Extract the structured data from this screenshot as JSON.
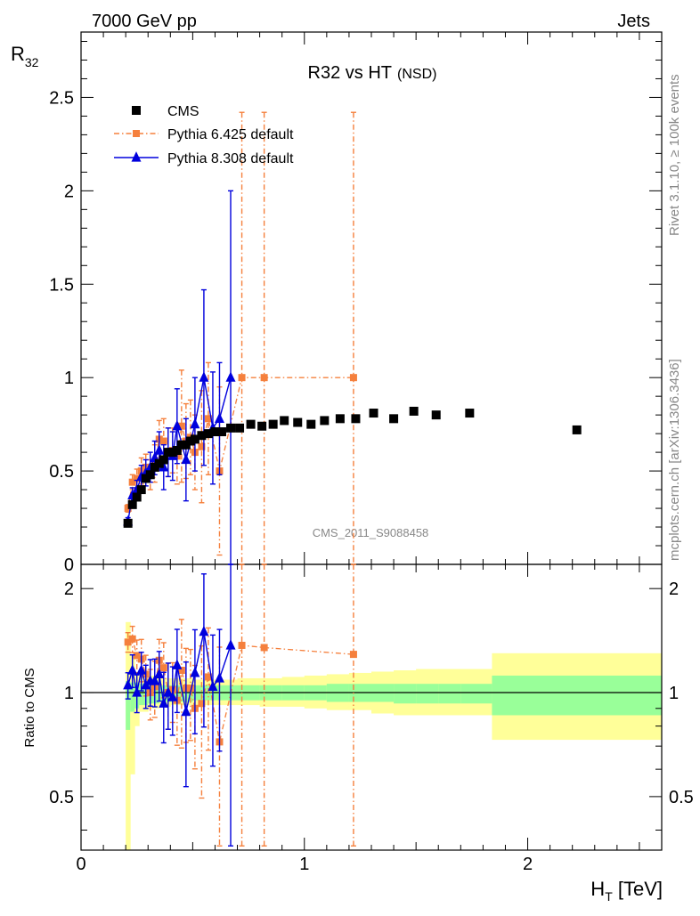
{
  "colors": {
    "cms": "#000000",
    "pythia6": "#f5803d",
    "pythia8": "#0000dd",
    "band_inner": "#99ff99",
    "band_outer": "#ffff99",
    "watermark": "#888888"
  },
  "header": {
    "left": "7000 GeV pp",
    "right": "Jets"
  },
  "side_text": {
    "rivet": "Rivet 3.1.10, ≥ 100k events",
    "mcplots": "mcplots.cern.ch [arXiv:1306.3436]"
  },
  "chart_data": {
    "type": "scatter",
    "title": "R32 vs HT",
    "title_suffix": "(NSD)",
    "analysis_label": "CMS_2011_S9088458",
    "xlabel_main": "H",
    "xlabel_sub": "T",
    "xlabel_unit": " [TeV]",
    "ylabel_main": "R",
    "ylabel_sub": "32",
    "ratio_ylabel": "Ratio to CMS",
    "xlim": [
      0,
      2.6
    ],
    "ylim": [
      0,
      2.85
    ],
    "ratio_ylim": [
      0.35,
      2.35
    ],
    "x_ticks": [
      {
        "v": 0,
        "label": "0"
      },
      {
        "v": 1,
        "label": "1"
      },
      {
        "v": 2,
        "label": "2"
      }
    ],
    "y_ticks": [
      {
        "v": 0,
        "label": "0"
      },
      {
        "v": 0.5,
        "label": "0.5"
      },
      {
        "v": 1,
        "label": "1"
      },
      {
        "v": 1.5,
        "label": "1.5"
      },
      {
        "v": 2,
        "label": "2"
      },
      {
        "v": 2.5,
        "label": "2.5"
      }
    ],
    "ratio_ticks": [
      {
        "v": 0.5,
        "label": "0.5"
      },
      {
        "v": 1,
        "label": "1"
      },
      {
        "v": 2,
        "label": "2"
      }
    ],
    "legend": [
      {
        "key": "cms",
        "label": "CMS"
      },
      {
        "key": "pythia6",
        "label": "Pythia 6.425 default"
      },
      {
        "key": "pythia8",
        "label": "Pythia 8.308 default"
      }
    ],
    "series": [
      {
        "name": "CMS",
        "key": "cms",
        "x": [
          0.21,
          0.23,
          0.25,
          0.27,
          0.29,
          0.31,
          0.33,
          0.35,
          0.37,
          0.39,
          0.41,
          0.43,
          0.45,
          0.47,
          0.49,
          0.51,
          0.54,
          0.57,
          0.6,
          0.63,
          0.67,
          0.71,
          0.76,
          0.81,
          0.86,
          0.91,
          0.97,
          1.03,
          1.09,
          1.16,
          1.23,
          1.31,
          1.4,
          1.49,
          1.59,
          1.74,
          2.22
        ],
        "y": [
          0.22,
          0.32,
          0.36,
          0.4,
          0.46,
          0.48,
          0.52,
          0.54,
          0.56,
          0.6,
          0.6,
          0.61,
          0.64,
          0.64,
          0.66,
          0.67,
          0.69,
          0.7,
          0.71,
          0.71,
          0.73,
          0.73,
          0.75,
          0.74,
          0.75,
          0.77,
          0.76,
          0.75,
          0.77,
          0.78,
          0.78,
          0.81,
          0.78,
          0.82,
          0.8,
          0.81,
          0.72
        ]
      },
      {
        "name": "Pythia 6.425 default",
        "key": "pythia6",
        "x": [
          0.21,
          0.23,
          0.25,
          0.27,
          0.29,
          0.31,
          0.33,
          0.35,
          0.37,
          0.39,
          0.41,
          0.43,
          0.45,
          0.47,
          0.49,
          0.51,
          0.54,
          0.57,
          0.62,
          0.72,
          0.82,
          1.22
        ],
        "y": [
          0.3,
          0.44,
          0.46,
          0.5,
          0.52,
          0.48,
          0.54,
          0.67,
          0.66,
          0.6,
          0.61,
          0.58,
          0.74,
          0.66,
          0.68,
          0.6,
          0.63,
          0.78,
          0.5,
          1.0,
          1.0,
          1.0
        ],
        "err": [
          0.02,
          0.04,
          0.05,
          0.07,
          0.07,
          0.08,
          0.1,
          0.1,
          0.12,
          0.13,
          0.12,
          0.15,
          0.3,
          0.2,
          0.2,
          0.2,
          0.3,
          0.3,
          0.45,
          1.42,
          1.42,
          1.42
        ],
        "ratio": [
          1.4,
          1.43,
          1.28,
          1.25,
          1.13,
          1.0,
          1.04,
          1.24,
          1.18,
          1.0,
          1.02,
          0.95,
          1.16,
          1.03,
          1.03,
          0.9,
          0.93,
          1.11,
          0.72,
          1.37,
          1.35,
          1.29
        ]
      },
      {
        "name": "Pythia 8.308 default",
        "key": "pythia8",
        "x": [
          0.21,
          0.23,
          0.25,
          0.27,
          0.29,
          0.31,
          0.33,
          0.35,
          0.37,
          0.39,
          0.41,
          0.43,
          0.47,
          0.51,
          0.55,
          0.59,
          0.62,
          0.67
        ],
        "y": [
          0.23,
          0.37,
          0.4,
          0.47,
          0.49,
          0.52,
          0.57,
          0.61,
          0.52,
          0.6,
          0.58,
          0.74,
          0.56,
          0.75,
          1.0,
          0.73,
          0.78,
          1.0
        ],
        "err": [
          0.02,
          0.04,
          0.05,
          0.06,
          0.07,
          0.08,
          0.09,
          0.1,
          0.12,
          0.13,
          0.13,
          0.2,
          0.22,
          0.25,
          0.47,
          0.3,
          0.3,
          1.0
        ],
        "ratio": [
          1.05,
          1.16,
          1.0,
          1.16,
          1.05,
          1.08,
          1.08,
          1.13,
          0.93,
          1.0,
          0.97,
          1.2,
          0.88,
          1.14,
          1.5,
          1.04,
          1.1,
          1.37
        ]
      }
    ],
    "band": {
      "x_edges": [
        0.2,
        0.22,
        0.24,
        0.26,
        0.3,
        0.35,
        0.4,
        0.5,
        0.6,
        0.7,
        0.8,
        0.9,
        1.0,
        1.1,
        1.2,
        1.3,
        1.4,
        1.5,
        1.6,
        1.7,
        1.84,
        2.6
      ],
      "inner_lo": [
        0.78,
        0.88,
        0.9,
        0.92,
        0.93,
        0.94,
        0.94,
        0.95,
        0.95,
        0.95,
        0.95,
        0.95,
        0.95,
        0.94,
        0.94,
        0.94,
        0.93,
        0.93,
        0.93,
        0.93,
        0.86
      ],
      "inner_hi": [
        1.08,
        1.07,
        1.07,
        1.06,
        1.06,
        1.05,
        1.05,
        1.05,
        1.05,
        1.05,
        1.05,
        1.05,
        1.05,
        1.06,
        1.06,
        1.06,
        1.06,
        1.06,
        1.06,
        1.06,
        1.12
      ],
      "outer_lo": [
        0.3,
        0.58,
        0.8,
        0.88,
        0.9,
        0.91,
        0.92,
        0.92,
        0.92,
        0.92,
        0.91,
        0.91,
        0.9,
        0.89,
        0.89,
        0.87,
        0.86,
        0.86,
        0.86,
        0.86,
        0.73
      ],
      "outer_hi": [
        1.6,
        1.28,
        1.14,
        1.12,
        1.12,
        1.1,
        1.1,
        1.09,
        1.09,
        1.1,
        1.1,
        1.11,
        1.12,
        1.13,
        1.14,
        1.15,
        1.16,
        1.17,
        1.17,
        1.17,
        1.3
      ]
    }
  }
}
